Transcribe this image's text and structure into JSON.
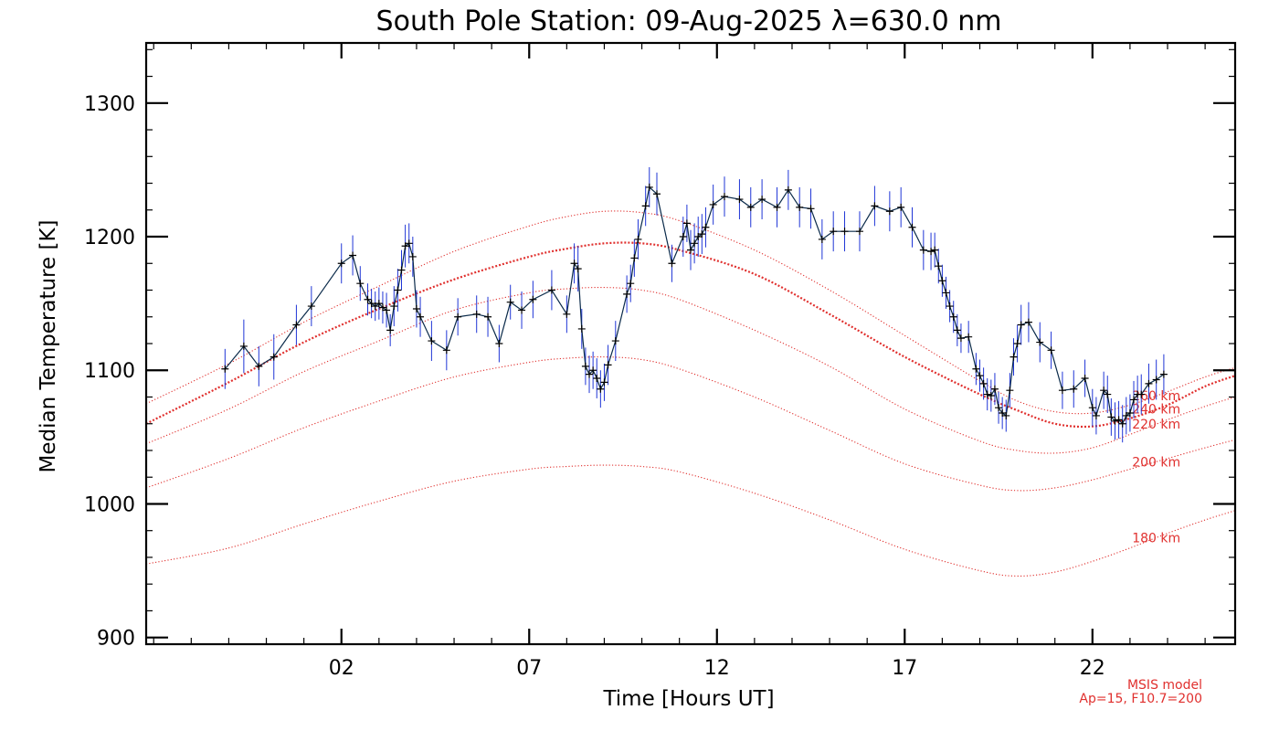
{
  "chart_data": {
    "type": "line",
    "title": "South Pole Station: 09-Aug-2025 λ=630.0 nm",
    "xlabel": "Time [Hours UT]",
    "ylabel": "Median Temperature [K]",
    "xlim": [
      -3.2,
      25.8
    ],
    "ylim": [
      895,
      1345
    ],
    "xticks": [
      2,
      7,
      12,
      17,
      22
    ],
    "xtick_labels": [
      "02",
      "07",
      "12",
      "17",
      "22"
    ],
    "yticks": [
      900,
      1000,
      1100,
      1200,
      1300
    ],
    "ytick_labels": [
      "900",
      "1000",
      "1100",
      "1200",
      "1300"
    ],
    "grid": false,
    "colors": {
      "data": "#1f35d6",
      "line": "#0a2a4a",
      "marker": "#000000",
      "model": "#e0302e"
    },
    "observations": {
      "name": "Median Temperature",
      "x": [
        -1.1,
        -0.6,
        -0.2,
        0.2,
        0.8,
        1.2,
        2.0,
        2.3,
        2.5,
        2.7,
        2.8,
        2.9,
        3.0,
        3.1,
        3.2,
        3.3,
        3.4,
        3.5,
        3.6,
        3.7,
        3.8,
        3.9,
        4.0,
        4.1,
        4.4,
        4.8,
        5.1,
        5.6,
        5.9,
        6.2,
        6.5,
        6.8,
        7.1,
        7.6,
        8.0,
        8.2,
        8.3,
        8.4,
        8.5,
        8.6,
        8.7,
        8.8,
        8.9,
        9.0,
        9.1,
        9.3,
        9.6,
        9.7,
        9.8,
        9.9,
        10.1,
        10.2,
        10.4,
        10.8,
        11.1,
        11.2,
        11.3,
        11.4,
        11.5,
        11.6,
        11.7,
        11.9,
        12.2,
        12.6,
        12.9,
        13.2,
        13.6,
        13.9,
        14.2,
        14.5,
        14.8,
        15.1,
        15.4,
        15.8,
        16.2,
        16.6,
        16.9,
        17.2,
        17.5,
        17.7,
        17.8,
        17.9,
        18.0,
        18.1,
        18.2,
        18.3,
        18.4,
        18.5,
        18.7,
        18.9,
        19.0,
        19.1,
        19.2,
        19.3,
        19.4,
        19.5,
        19.6,
        19.7,
        19.8,
        19.9,
        20.0,
        20.1,
        20.3,
        20.6,
        20.9,
        21.2,
        21.5,
        21.8,
        22.0,
        22.1,
        22.3,
        22.4,
        22.5,
        22.6,
        22.7,
        22.8,
        22.9,
        23.0,
        23.1,
        23.2,
        23.3,
        23.5,
        23.7,
        23.9
      ],
      "y": [
        1101,
        1118,
        1103,
        1110,
        1134,
        1148,
        1180,
        1186,
        1165,
        1153,
        1150,
        1148,
        1150,
        1147,
        1145,
        1130,
        1148,
        1160,
        1175,
        1193,
        1195,
        1185,
        1146,
        1140,
        1122,
        1115,
        1140,
        1142,
        1140,
        1120,
        1151,
        1145,
        1153,
        1160,
        1142,
        1180,
        1176,
        1131,
        1103,
        1097,
        1100,
        1094,
        1086,
        1091,
        1104,
        1122,
        1157,
        1165,
        1184,
        1198,
        1223,
        1237,
        1232,
        1180,
        1200,
        1210,
        1190,
        1195,
        1200,
        1202,
        1207,
        1224,
        1230,
        1228,
        1222,
        1228,
        1222,
        1235,
        1222,
        1221,
        1198,
        1204,
        1204,
        1204,
        1223,
        1219,
        1222,
        1207,
        1190,
        1189,
        1190,
        1178,
        1167,
        1158,
        1148,
        1140,
        1130,
        1124,
        1125,
        1101,
        1096,
        1090,
        1082,
        1081,
        1086,
        1072,
        1068,
        1066,
        1085,
        1110,
        1120,
        1134,
        1136,
        1121,
        1115,
        1085,
        1086,
        1094,
        1072,
        1066,
        1085,
        1082,
        1065,
        1062,
        1063,
        1060,
        1066,
        1068,
        1078,
        1082,
        1082,
        1090,
        1093,
        1097
      ],
      "yerr": [
        15,
        20,
        15,
        17,
        15,
        15,
        15,
        15,
        13,
        12,
        11,
        11,
        12,
        12,
        13,
        12,
        15,
        16,
        15,
        16,
        15,
        15,
        14,
        15,
        15,
        15,
        14,
        14,
        15,
        14,
        13,
        14,
        14,
        15,
        14,
        15,
        17,
        15,
        14,
        14,
        14,
        15,
        14,
        14,
        15,
        15,
        14,
        14,
        14,
        15,
        15,
        15,
        16,
        14,
        15,
        14,
        15,
        15,
        15,
        15,
        15,
        15,
        15,
        15,
        15,
        15,
        15,
        15,
        15,
        15,
        15,
        15,
        15,
        15,
        15,
        15,
        15,
        15,
        15,
        14,
        13,
        13,
        12,
        12,
        12,
        12,
        12,
        11,
        12,
        12,
        12,
        12,
        12,
        12,
        12,
        12,
        12,
        12,
        13,
        14,
        14,
        15,
        15,
        15,
        14,
        14,
        14,
        14,
        14,
        14,
        14,
        14,
        14,
        14,
        14,
        14,
        14,
        14,
        14,
        14,
        15,
        15,
        15,
        15
      ]
    },
    "model": {
      "name": "MSIS model",
      "params": "Ap=15, F10.7=200",
      "x": [
        -3.2,
        -1,
        1,
        3,
        5,
        7,
        8,
        9,
        10,
        11,
        13,
        15,
        17,
        19,
        20,
        21,
        22,
        23,
        24,
        25,
        25.8
      ],
      "curves": [
        {
          "label": "180 km",
          "y": [
            955,
            967,
            985,
            1002,
            1017,
            1026,
            1028,
            1029,
            1028,
            1024,
            1008,
            988,
            966,
            950,
            946,
            949,
            957,
            967,
            978,
            988,
            995
          ]
        },
        {
          "label": "200 km",
          "y": [
            1012,
            1034,
            1057,
            1077,
            1095,
            1106,
            1109,
            1110,
            1108,
            1101,
            1080,
            1055,
            1030,
            1014,
            1010,
            1012,
            1018,
            1026,
            1034,
            1042,
            1048
          ]
        },
        {
          "label": "220 km",
          "y": [
            1045,
            1071,
            1099,
            1122,
            1145,
            1158,
            1161,
            1162,
            1160,
            1153,
            1130,
            1103,
            1071,
            1047,
            1040,
            1038,
            1042,
            1052,
            1063,
            1073,
            1080
          ]
        },
        {
          "label": "240 km",
          "y": [
            1060,
            1091,
            1121,
            1146,
            1168,
            1185,
            1191,
            1195,
            1195,
            1190,
            1172,
            1142,
            1110,
            1082,
            1070,
            1060,
            1058,
            1064,
            1074,
            1088,
            1096
          ]
        },
        {
          "label": "260 km",
          "y": [
            1075,
            1105,
            1136,
            1163,
            1189,
            1208,
            1215,
            1219,
            1218,
            1212,
            1190,
            1160,
            1126,
            1092,
            1077,
            1069,
            1068,
            1074,
            1084,
            1095,
            1102
          ]
        }
      ]
    }
  }
}
